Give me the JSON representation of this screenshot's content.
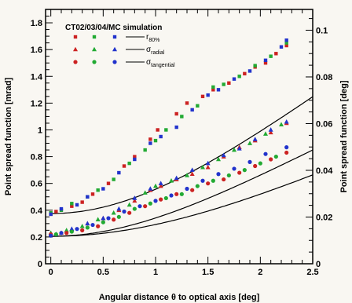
{
  "chart_data": {
    "type": "scatter",
    "title": "CT02/03/04/MC simulation",
    "xlabel_prefix": "Angular distance ",
    "xlabel_symbol": "θ",
    "xlabel_suffix": " to optical axis [deg]",
    "ylabel_left": "Point spread function [mrad]",
    "ylabel_right": "Point spread function [deg]",
    "xlim": [
      -0.05,
      2.5
    ],
    "ylim_left": [
      0,
      1.9
    ],
    "ylim_right_deg": [
      0,
      0.1089
    ],
    "x_ticks": [
      "0",
      "0.5",
      "1",
      "1.5",
      "2",
      "2.5"
    ],
    "y_ticks_left": [
      "0",
      "0.2",
      "0.4",
      "0.6",
      "0.8",
      "1",
      "1.2",
      "1.4",
      "1.6",
      "1.8"
    ],
    "y_ticks_right": [
      "0",
      "0.02",
      "0.04",
      "0.06",
      "0.08",
      "0.1"
    ],
    "grid": false,
    "legend_placement": "top-left",
    "legend": {
      "rows": [
        {
          "marker": "square",
          "label_main": "r",
          "label_sub": "80%"
        },
        {
          "marker": "triangle",
          "label_main": "σ",
          "label_sub": "radial"
        },
        {
          "marker": "circle",
          "label_main": "σ",
          "label_sub": "tangential"
        }
      ],
      "colors": [
        "#cc2222",
        "#22aa33",
        "#2233cc"
      ]
    },
    "colors": {
      "CT02": "#cc2222",
      "CT03": "#22aa33",
      "CT04": "#2233cc"
    },
    "fit_curves": [
      {
        "name": "r80%",
        "a": 0.375,
        "b": 0.0,
        "c": 0.5,
        "d": 0.195
      },
      {
        "name": "sigma_radial",
        "a": 0.205,
        "b": 0.0,
        "c": 0.36,
        "d": 0.148
      },
      {
        "name": "sigma_tangential",
        "a": 0.205,
        "b": 0.0,
        "c": 0.305,
        "d": 0.092
      }
    ],
    "series": [
      {
        "telescope": "CT02",
        "marker": "square",
        "x": [
          0.0,
          0.05,
          0.2,
          0.3,
          0.4,
          0.55,
          0.7,
          0.8,
          0.95,
          1.02,
          1.2,
          1.3,
          1.45,
          1.55,
          1.7,
          1.85,
          1.95,
          2.05,
          2.15,
          2.25
        ],
        "y": [
          0.37,
          0.39,
          0.43,
          0.46,
          0.52,
          0.6,
          0.73,
          0.8,
          0.93,
          1.0,
          1.12,
          1.2,
          1.25,
          1.3,
          1.35,
          1.42,
          1.47,
          1.5,
          1.57,
          1.63
        ]
      },
      {
        "telescope": "CT03",
        "marker": "square",
        "x": [
          0.0,
          0.1,
          0.2,
          0.35,
          0.45,
          0.6,
          0.75,
          0.9,
          1.0,
          1.1,
          1.25,
          1.4,
          1.55,
          1.65,
          1.8,
          1.95,
          2.1,
          2.25
        ],
        "y": [
          0.38,
          0.4,
          0.45,
          0.5,
          0.55,
          0.63,
          0.75,
          0.85,
          0.92,
          1.0,
          1.1,
          1.18,
          1.32,
          1.34,
          1.4,
          1.48,
          1.55,
          1.65
        ]
      },
      {
        "telescope": "CT04",
        "marker": "square",
        "x": [
          0.0,
          0.1,
          0.25,
          0.35,
          0.5,
          0.65,
          0.8,
          0.95,
          1.05,
          1.2,
          1.35,
          1.5,
          1.6,
          1.75,
          1.9,
          2.05,
          2.2,
          2.25
        ],
        "y": [
          0.37,
          0.41,
          0.44,
          0.5,
          0.56,
          0.68,
          0.78,
          0.9,
          0.95,
          1.02,
          1.15,
          1.26,
          1.3,
          1.38,
          1.44,
          1.52,
          1.62,
          1.67
        ]
      },
      {
        "telescope": "CT02",
        "marker": "triangle",
        "x": [
          0.0,
          0.1,
          0.2,
          0.35,
          0.5,
          0.65,
          0.8,
          0.95,
          1.05,
          1.2,
          1.35,
          1.5,
          1.65,
          1.8,
          1.95,
          2.1,
          2.25
        ],
        "y": [
          0.22,
          0.23,
          0.25,
          0.3,
          0.34,
          0.4,
          0.47,
          0.55,
          0.58,
          0.63,
          0.67,
          0.72,
          0.8,
          0.87,
          0.92,
          0.98,
          1.05
        ]
      },
      {
        "telescope": "CT03",
        "marker": "triangle",
        "x": [
          0.0,
          0.15,
          0.3,
          0.45,
          0.6,
          0.75,
          0.9,
          1.0,
          1.15,
          1.3,
          1.45,
          1.6,
          1.75,
          1.9,
          2.05,
          2.2
        ],
        "y": [
          0.23,
          0.25,
          0.28,
          0.33,
          0.38,
          0.44,
          0.53,
          0.58,
          0.62,
          0.66,
          0.72,
          0.78,
          0.85,
          0.9,
          0.97,
          1.04
        ]
      },
      {
        "telescope": "CT04",
        "marker": "triangle",
        "x": [
          0.05,
          0.2,
          0.35,
          0.5,
          0.65,
          0.8,
          0.95,
          1.05,
          1.2,
          1.35,
          1.5,
          1.65,
          1.8,
          1.95,
          2.1,
          2.25
        ],
        "y": [
          0.22,
          0.26,
          0.3,
          0.34,
          0.41,
          0.49,
          0.56,
          0.6,
          0.64,
          0.7,
          0.75,
          0.81,
          0.86,
          0.93,
          1.0,
          1.06
        ]
      },
      {
        "telescope": "CT02",
        "marker": "circle",
        "x": [
          0.0,
          0.15,
          0.3,
          0.45,
          0.6,
          0.75,
          0.9,
          1.05,
          1.2,
          1.35,
          1.5,
          1.65,
          1.8,
          1.95,
          2.1,
          2.25
        ],
        "y": [
          0.22,
          0.23,
          0.25,
          0.28,
          0.33,
          0.38,
          0.43,
          0.48,
          0.52,
          0.55,
          0.6,
          0.63,
          0.68,
          0.73,
          0.78,
          0.83
        ]
      },
      {
        "telescope": "CT03",
        "marker": "circle",
        "x": [
          0.05,
          0.2,
          0.35,
          0.5,
          0.65,
          0.8,
          0.95,
          1.1,
          1.25,
          1.4,
          1.55,
          1.7,
          1.85,
          2.0,
          2.15
        ],
        "y": [
          0.22,
          0.24,
          0.27,
          0.31,
          0.35,
          0.41,
          0.45,
          0.49,
          0.52,
          0.58,
          0.62,
          0.66,
          0.7,
          0.75,
          0.8
        ]
      },
      {
        "telescope": "CT04",
        "marker": "circle",
        "x": [
          0.0,
          0.1,
          0.25,
          0.4,
          0.55,
          0.7,
          0.85,
          1.0,
          1.15,
          1.3,
          1.45,
          1.6,
          1.75,
          1.9,
          2.05,
          2.25
        ],
        "y": [
          0.21,
          0.23,
          0.26,
          0.29,
          0.34,
          0.39,
          0.43,
          0.47,
          0.51,
          0.56,
          0.62,
          0.67,
          0.71,
          0.76,
          0.82,
          0.87
        ]
      }
    ]
  }
}
